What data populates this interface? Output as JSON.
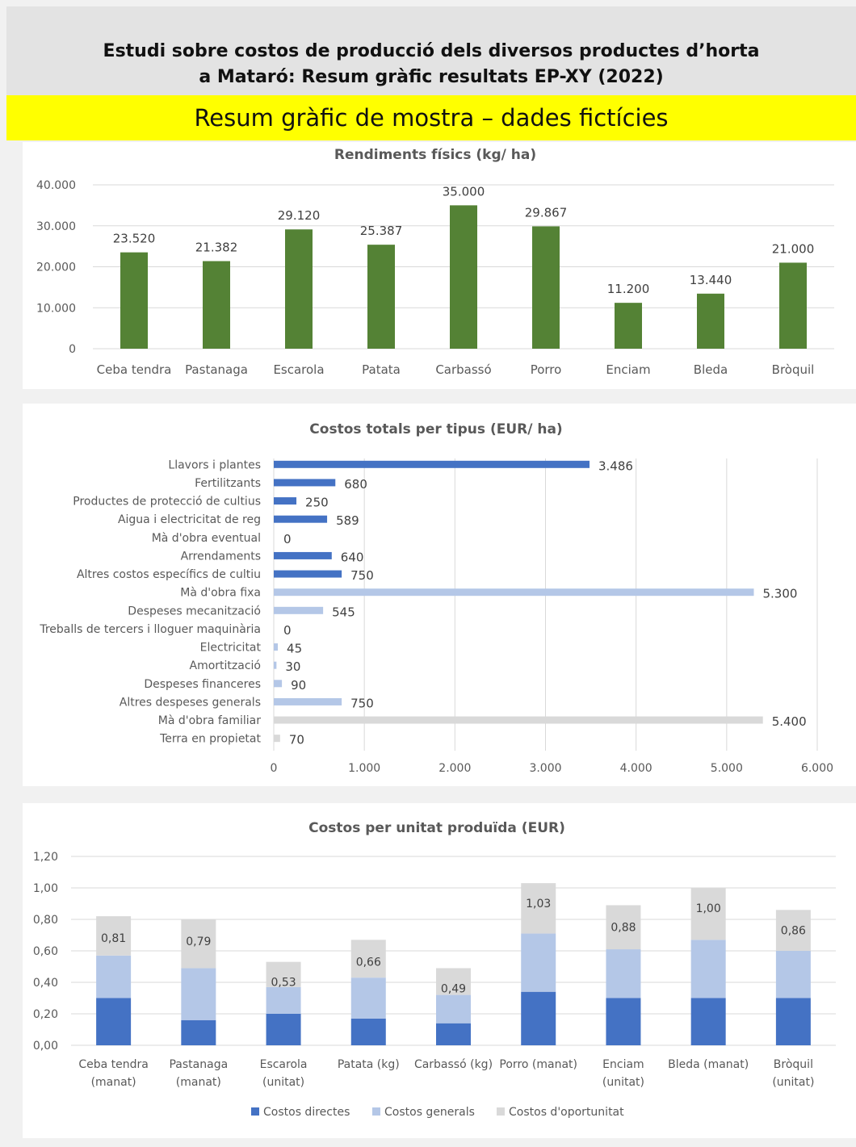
{
  "header": {
    "title_line1": "Estudi sobre costos de producció dels diversos productes d’horta",
    "title_line2": "a Mataró: Resum gràfic resultats EP-XY (2022)"
  },
  "banner": {
    "text": "Resum gràfic de mostra – dades fictícies"
  },
  "colors": {
    "green": "#548235",
    "dark_blue": "#4472c4",
    "light_blue": "#b4c7e7",
    "gray": "#d9d9d9",
    "banner": "#ffff00"
  },
  "chart_data": [
    {
      "type": "bar",
      "title": "Rendiments físics (kg/ ha)",
      "categories": [
        "Ceba tendra",
        "Pastanaga",
        "Escarola",
        "Patata",
        "Carbassó",
        "Porro",
        "Enciam",
        "Bleda",
        "Bròquil"
      ],
      "values": [
        23520,
        21382,
        29120,
        25387,
        35000,
        29867,
        11200,
        13440,
        21000
      ],
      "value_labels": [
        "23.520",
        "21.382",
        "29.120",
        "25.387",
        "35.000",
        "29.867",
        "11.200",
        "13.440",
        "21.000"
      ],
      "ylim": [
        0,
        40000
      ],
      "yticks": [
        0,
        10000,
        20000,
        30000,
        40000
      ],
      "ytick_labels": [
        "0",
        "10.000",
        "20.000",
        "30.000",
        "40.000"
      ],
      "grid": true
    },
    {
      "type": "bar",
      "orientation": "horizontal",
      "title": "Costos totals per tipus (EUR/ ha)",
      "categories": [
        "Llavors i plantes",
        "Fertilitzants",
        "Productes de protecció de cultius",
        "Aigua i electricitat de reg",
        "Mà d'obra eventual",
        "Arrendaments",
        "Altres costos específics de cultiu",
        "Mà d'obra fixa",
        "Despeses mecanització",
        "Treballs de tercers i lloguer maquinària",
        "Electricitat",
        "Amortització",
        "Despeses financeres",
        "Altres despeses generals",
        "Mà d'obra familiar",
        "Terra en propietat"
      ],
      "values": [
        3486,
        680,
        250,
        589,
        0,
        640,
        750,
        5300,
        545,
        0,
        45,
        30,
        90,
        750,
        5400,
        70
      ],
      "value_labels": [
        "3.486",
        "680",
        "250",
        "589",
        "0",
        "640",
        "750",
        "5.300",
        "545",
        "0",
        "45",
        "30",
        "90",
        "750",
        "5.400",
        "70"
      ],
      "groups": [
        "directes",
        "directes",
        "directes",
        "directes",
        "directes",
        "directes",
        "directes",
        "generals",
        "generals",
        "generals",
        "generals",
        "generals",
        "generals",
        "generals",
        "oportunitat",
        "oportunitat"
      ],
      "xlim": [
        0,
        6000
      ],
      "xticks": [
        0,
        1000,
        2000,
        3000,
        4000,
        5000,
        6000
      ],
      "xtick_labels": [
        "0",
        "1.000",
        "2.000",
        "3.000",
        "4.000",
        "5.000",
        "6.000"
      ],
      "grid": true
    },
    {
      "type": "bar",
      "stacked": true,
      "title": "Costos per unitat produïda (EUR)",
      "categories": [
        [
          "Ceba tendra",
          "(manat)"
        ],
        [
          "Pastanaga",
          "(manat)"
        ],
        [
          "Escarola",
          "(unitat)"
        ],
        [
          "Patata (kg)"
        ],
        [
          "Carbassó (kg)"
        ],
        [
          "Porro (manat)"
        ],
        [
          "Enciam",
          "(unitat)"
        ],
        [
          "Bleda (manat)"
        ],
        [
          "Bròquil",
          "(unitat)"
        ]
      ],
      "series": [
        {
          "name": "Costos directes",
          "values": [
            0.3,
            0.16,
            0.2,
            0.17,
            0.14,
            0.34,
            0.3,
            0.3,
            0.3
          ]
        },
        {
          "name": "Costos generals",
          "values": [
            0.27,
            0.33,
            0.17,
            0.26,
            0.18,
            0.37,
            0.31,
            0.37,
            0.3
          ]
        },
        {
          "name": "Costos d'oportunitat",
          "values": [
            0.25,
            0.31,
            0.16,
            0.24,
            0.17,
            0.32,
            0.28,
            0.33,
            0.26
          ]
        }
      ],
      "totals": [
        0.81,
        0.79,
        0.53,
        0.66,
        0.49,
        1.03,
        0.88,
        1.0,
        0.86
      ],
      "total_labels": [
        "0,81",
        "0,79",
        "0,53",
        "0,66",
        "0,49",
        "1,03",
        "0,88",
        "1,00",
        "0,86"
      ],
      "ylim": [
        0,
        1.2
      ],
      "yticks": [
        0,
        0.2,
        0.4,
        0.6,
        0.8,
        1.0,
        1.2
      ],
      "ytick_labels": [
        "0,00",
        "0,20",
        "0,40",
        "0,60",
        "0,80",
        "1,00",
        "1,20"
      ],
      "legend": "bottom",
      "grid": true
    }
  ]
}
